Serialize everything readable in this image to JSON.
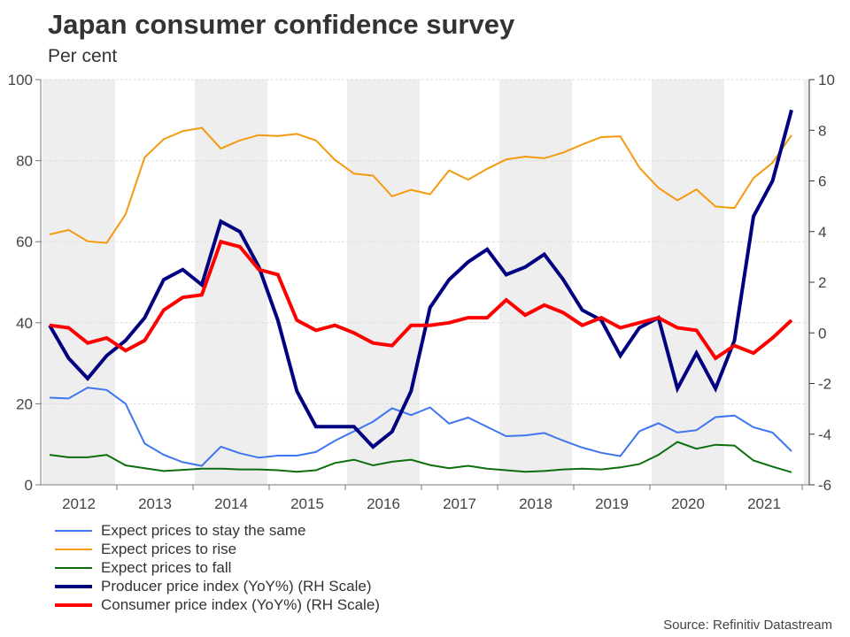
{
  "header": {
    "title": "Japan consumer confidence survey",
    "subtitle": "Per cent"
  },
  "source": "Source: Refinitiv Datastream",
  "chart_data": {
    "type": "line",
    "title": "Japan consumer confidence survey",
    "subtitle": "Per cent",
    "xlabel": "",
    "ylabel": "Per cent",
    "y_left": {
      "range": [
        0,
        100
      ],
      "ticks": [
        "0",
        "20",
        "40",
        "60",
        "80",
        "100"
      ]
    },
    "y_right": {
      "range": [
        -6,
        10
      ],
      "ticks": [
        "-6",
        "-4",
        "-2",
        "0",
        "2",
        "4",
        "6",
        "8",
        "10"
      ]
    },
    "x_tick_labels": [
      "2012",
      "2013",
      "2014",
      "2015",
      "2016",
      "2017",
      "2018",
      "2019",
      "2020",
      "2021"
    ],
    "shaded_years": [
      "2012",
      "2014",
      "2016",
      "2018",
      "2020"
    ],
    "grid": true,
    "legend_position": "bottom-left",
    "x": [
      "2012Q1",
      "2012Q2",
      "2012Q3",
      "2012Q4",
      "2013Q1",
      "2013Q2",
      "2013Q3",
      "2013Q4",
      "2014Q1",
      "2014Q2",
      "2014Q3",
      "2014Q4",
      "2015Q1",
      "2015Q2",
      "2015Q3",
      "2015Q4",
      "2016Q1",
      "2016Q2",
      "2016Q3",
      "2016Q4",
      "2017Q1",
      "2017Q2",
      "2017Q3",
      "2017Q4",
      "2018Q1",
      "2018Q2",
      "2018Q3",
      "2018Q4",
      "2019Q1",
      "2019Q2",
      "2019Q3",
      "2019Q4",
      "2020Q1",
      "2020Q2",
      "2020Q3",
      "2020Q4",
      "2021Q1",
      "2021Q2",
      "2021Q3",
      "2021Q4"
    ],
    "series": [
      {
        "name": "Expect prices to stay the same",
        "axis": "left",
        "color": "#3e75f0",
        "values": [
          21.5,
          21.3,
          24.0,
          23.4,
          20.0,
          10.2,
          7.4,
          5.6,
          4.7,
          9.4,
          7.8,
          6.7,
          7.2,
          7.2,
          8.1,
          10.9,
          13.2,
          15.6,
          18.9,
          17.2,
          19.1,
          15.1,
          16.6,
          14.3,
          12.0,
          12.2,
          12.8,
          10.9,
          9.2,
          7.9,
          7.1,
          13.2,
          15.2,
          12.9,
          13.5,
          16.7,
          17.1,
          14.2,
          12.9,
          8.3
        ]
      },
      {
        "name": "Expect prices to rise",
        "axis": "left",
        "color": "#f59a0e",
        "values": [
          61.8,
          62.9,
          60.1,
          59.7,
          66.8,
          80.8,
          85.3,
          87.3,
          88.1,
          83.0,
          85.0,
          86.3,
          86.1,
          86.6,
          85.0,
          80.2,
          76.8,
          76.3,
          71.2,
          72.8,
          71.7,
          77.6,
          75.3,
          78.0,
          80.3,
          81.0,
          80.6,
          82.0,
          84.0,
          85.8,
          86.0,
          78.3,
          73.3,
          70.2,
          72.9,
          68.7,
          68.3,
          75.7,
          79.5,
          86.3
        ]
      },
      {
        "name": "Expect prices to fall",
        "axis": "left",
        "color": "#0c6e0c",
        "values": [
          7.4,
          6.8,
          6.8,
          7.4,
          4.8,
          4.1,
          3.4,
          3.7,
          4.0,
          4.0,
          3.8,
          3.8,
          3.6,
          3.2,
          3.6,
          5.4,
          6.2,
          4.8,
          5.7,
          6.2,
          4.9,
          4.1,
          4.7,
          4.0,
          3.6,
          3.2,
          3.4,
          3.8,
          4.0,
          3.8,
          4.3,
          5.1,
          7.4,
          10.6,
          8.9,
          9.9,
          9.7,
          6.0,
          4.5,
          3.1
        ]
      },
      {
        "name": "Producer price index (YoY%) (RH Scale)",
        "axis": "right",
        "color": "#000080",
        "values": [
          0.3,
          -1.0,
          -1.8,
          -0.9,
          -0.3,
          0.6,
          2.1,
          2.5,
          1.9,
          4.4,
          4.0,
          2.6,
          0.5,
          -2.3,
          -3.7,
          -3.7,
          -3.7,
          -4.5,
          -3.9,
          -2.3,
          1.0,
          2.1,
          2.8,
          3.3,
          2.3,
          2.6,
          3.1,
          2.1,
          0.9,
          0.5,
          -0.9,
          0.2,
          0.6,
          -2.2,
          -0.8,
          -2.2,
          -0.3,
          4.6,
          6.0,
          8.8
        ]
      },
      {
        "name": "Consumer price index (YoY%) (RH Scale)",
        "axis": "right",
        "color": "#ff0000",
        "values": [
          0.3,
          0.2,
          -0.4,
          -0.2,
          -0.7,
          -0.3,
          0.9,
          1.4,
          1.5,
          3.6,
          3.4,
          2.5,
          2.3,
          0.5,
          0.1,
          0.3,
          0.0,
          -0.4,
          -0.5,
          0.3,
          0.3,
          0.4,
          0.6,
          0.6,
          1.3,
          0.7,
          1.1,
          0.8,
          0.3,
          0.6,
          0.2,
          0.4,
          0.6,
          0.2,
          0.1,
          -1.0,
          -0.5,
          -0.8,
          -0.2,
          0.5
        ]
      }
    ]
  },
  "legend": [
    {
      "label": "Expect prices to stay the same",
      "color": "#3e75f0"
    },
    {
      "label": "Expect prices to rise",
      "color": "#f59a0e"
    },
    {
      "label": "Expect prices to fall",
      "color": "#0c6e0c"
    },
    {
      "label": "Producer price index (YoY%) (RH Scale)",
      "color": "#000080"
    },
    {
      "label": "Consumer price index (YoY%) (RH Scale)",
      "color": "#ff0000"
    }
  ]
}
